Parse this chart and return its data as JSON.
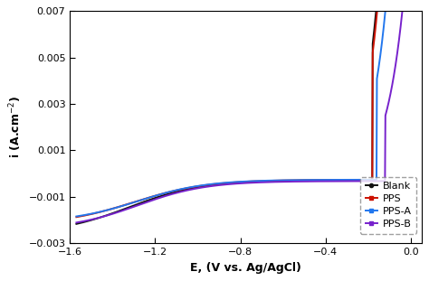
{
  "xlabel": "E, (V vs. Ag/AgCl)",
  "ylabel": "i (A.cm$^{-2}$)",
  "xlim": [
    -1.6,
    0.05
  ],
  "ylim": [
    -0.003,
    0.007
  ],
  "xticks": [
    -1.6,
    -1.2,
    -0.8,
    -0.4,
    0.0
  ],
  "yticks": [
    -0.003,
    -0.001,
    0.001,
    0.003,
    0.005,
    0.007
  ],
  "series": [
    {
      "label": "Blank",
      "color": "#111111",
      "lw": 1.4
    },
    {
      "label": "PPS",
      "color": "#cc1100",
      "lw": 1.4
    },
    {
      "label": "PPS-A",
      "color": "#2277ee",
      "lw": 1.4
    },
    {
      "label": "PPS-B",
      "color": "#7722cc",
      "lw": 1.4
    }
  ],
  "bg_color": "#ffffff"
}
